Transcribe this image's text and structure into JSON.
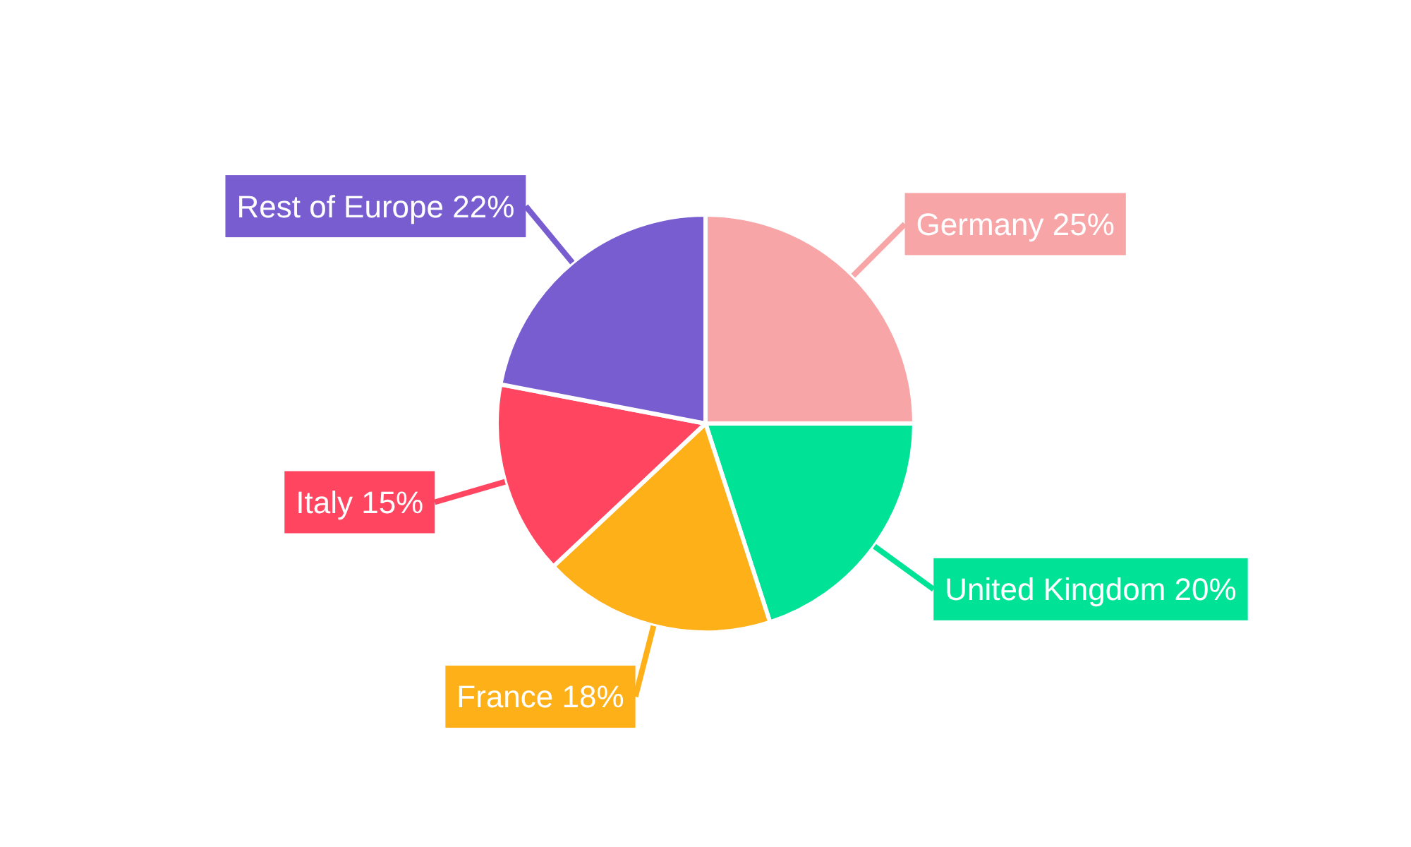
{
  "chart_data": {
    "type": "pie",
    "categories": [
      "Germany",
      "United Kingdom",
      "France",
      "Italy",
      "Rest of Europe"
    ],
    "values": [
      25,
      20,
      18,
      15,
      22
    ],
    "value_labels": [
      "25%",
      "20%",
      "18%",
      "15%",
      "22%"
    ],
    "colors": [
      "#f8a5a8",
      "#00e396",
      "#feb019",
      "#ff4560",
      "#775dd0"
    ]
  }
}
